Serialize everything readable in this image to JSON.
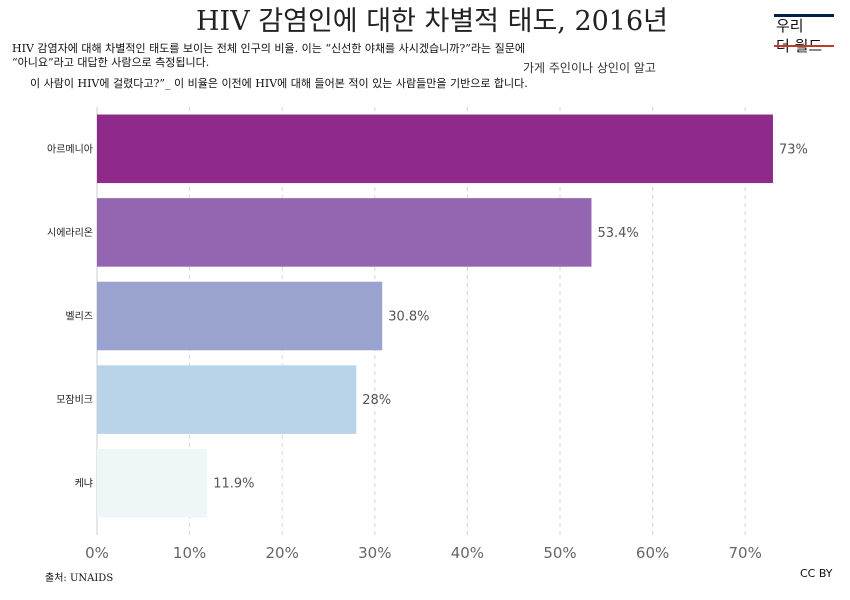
{
  "title": "HIV 감염인에 대한 차별적 태도, 2016년",
  "subtitle": {
    "line1": "HIV 감염자에 대해 차별적인 태도를 보이는 전체 인구의 비율. 이는 “신선한 야채를 사시겠습니까?”라는 질문에",
    "line2": "“아니요”라고 대답한 사람으로 측정됩니다.",
    "line3": "가게 주인이나 상인이 알고",
    "line4": "이 사람이 HIV에 걸렸다고?”_ 이 비율은 이전에 HIV에 대해 들어본 적이 있는 사람들만을 기반으로 합니다."
  },
  "logo": {
    "line1": "우리",
    "line2": "더 월드"
  },
  "footer": {
    "source": "출처: UNAIDS",
    "license": "CC BY"
  },
  "chart_data": {
    "type": "bar",
    "orientation": "horizontal",
    "categories": [
      "아르메니아",
      "시에라리온",
      "벨리즈",
      "모잠비크",
      "케냐"
    ],
    "values": [
      73,
      53.4,
      30.8,
      28,
      11.9
    ],
    "value_labels": [
      "73%",
      "53.4%",
      "30.8%",
      "28%",
      "11.9%"
    ],
    "colors": [
      "#8e2a8a",
      "#9465b0",
      "#9aa3cf",
      "#b9d3e8",
      "#eef6f8"
    ],
    "xlim": [
      0,
      77
    ],
    "xticks": [
      0,
      10,
      20,
      30,
      40,
      50,
      60,
      70
    ],
    "xtick_labels": [
      "0%",
      "10%",
      "20%",
      "30%",
      "40%",
      "50%",
      "60%",
      "70%"
    ],
    "grid": "vertical-dashed"
  }
}
